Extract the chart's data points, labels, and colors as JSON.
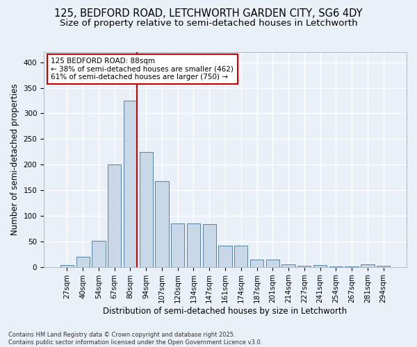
{
  "title_line1": "125, BEDFORD ROAD, LETCHWORTH GARDEN CITY, SG6 4DY",
  "title_line2": "Size of property relative to semi-detached houses in Letchworth",
  "xlabel": "Distribution of semi-detached houses by size in Letchworth",
  "ylabel": "Number of semi-detached properties",
  "categories": [
    "27sqm",
    "40sqm",
    "54sqm",
    "67sqm",
    "80sqm",
    "94sqm",
    "107sqm",
    "120sqm",
    "134sqm",
    "147sqm",
    "161sqm",
    "174sqm",
    "187sqm",
    "201sqm",
    "214sqm",
    "227sqm",
    "241sqm",
    "254sqm",
    "267sqm",
    "281sqm",
    "294sqm"
  ],
  "values": [
    3,
    20,
    51,
    200,
    325,
    225,
    168,
    85,
    85,
    83,
    42,
    42,
    14,
    14,
    5,
    2,
    4,
    1,
    1,
    5,
    2
  ],
  "bar_color": "#c8d8e8",
  "bar_edge_color": "#5580a0",
  "background_color": "#eaf0f8",
  "grid_color": "#ffffff",
  "vline_color": "#cc0000",
  "annotation_title": "125 BEDFORD ROAD: 88sqm",
  "annotation_line2": "← 38% of semi-detached houses are smaller (462)",
  "annotation_line3": "61% of semi-detached houses are larger (750) →",
  "annotation_box_color": "#cc0000",
  "ylim": [
    0,
    420
  ],
  "yticks": [
    0,
    50,
    100,
    150,
    200,
    250,
    300,
    350,
    400
  ],
  "footnote1": "Contains HM Land Registry data © Crown copyright and database right 2025.",
  "footnote2": "Contains public sector information licensed under the Open Government Licence v3.0.",
  "title_fontsize": 10.5,
  "subtitle_fontsize": 9.5,
  "axis_label_fontsize": 8.5,
  "tick_fontsize": 7.5,
  "annotation_fontsize": 7.5,
  "footnote_fontsize": 6.0
}
